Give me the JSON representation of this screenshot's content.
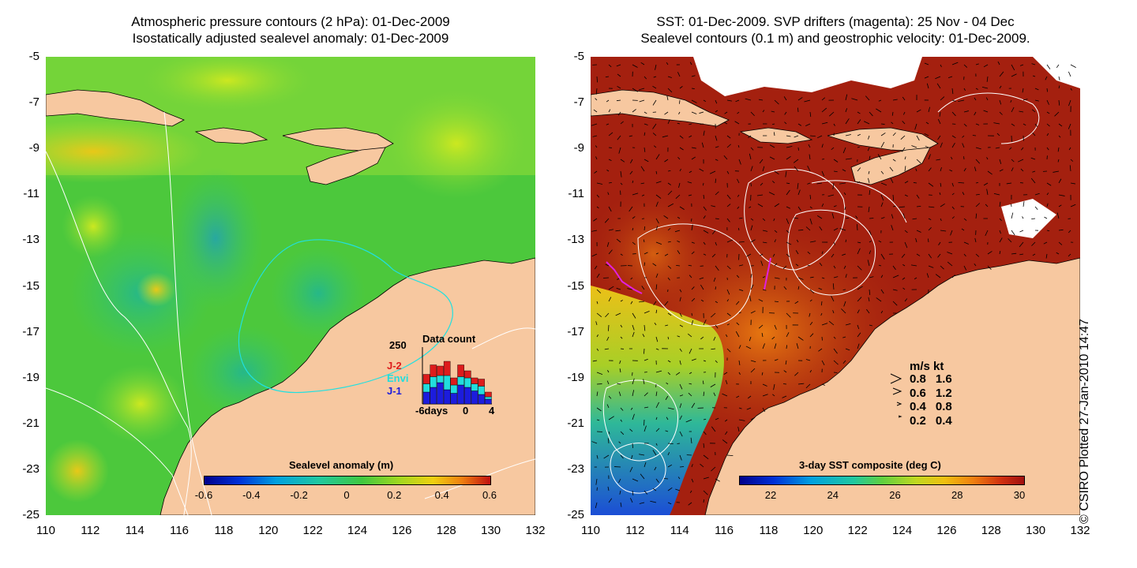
{
  "left_panel": {
    "title_line1": "Atmospheric pressure contours (2 hPa): 01-Dec-2009",
    "title_line2": "Isostatically adjusted sealevel anomaly: 01-Dec-2009",
    "colorbar_title": "Sealevel anomaly (m)",
    "colorbar_ticks": [
      "-0.6",
      "-0.4",
      "-0.2",
      "0",
      "0.2",
      "0.4",
      "0.6"
    ],
    "inset": {
      "title": "Data count",
      "ymax_label": "250",
      "series_labels": [
        "J-2",
        "Envi",
        "J-1"
      ],
      "series_colors": [
        "#dd1c1c",
        "#22dddd",
        "#1c1cdd"
      ],
      "x_labels": [
        "-6days",
        "0",
        "4"
      ],
      "x_values": [
        -6,
        0,
        4
      ],
      "ymax": 250,
      "stacks": [
        [
          40,
          35,
          50
        ],
        [
          50,
          45,
          70
        ],
        [
          40,
          30,
          90
        ],
        [
          60,
          60,
          60
        ],
        [
          30,
          35,
          45
        ],
        [
          50,
          35,
          80
        ],
        [
          30,
          40,
          70
        ],
        [
          25,
          30,
          55
        ],
        [
          30,
          35,
          40
        ],
        [
          20,
          10,
          20
        ]
      ]
    }
  },
  "right_panel": {
    "title_line1": "SST: 01-Dec-2009. SVP drifters (magenta): 25 Nov - 04 Dec",
    "title_line2": "Sealevel contours (0.1 m) and geostrophic velocity: 01-Dec-2009.",
    "colorbar_title": "3-day SST composite (deg C)",
    "colorbar_ticks": [
      "22",
      "24",
      "26",
      "28",
      "30"
    ],
    "velocity_legend": {
      "header": "m/s  kt",
      "rows": [
        {
          "ms": "0.8",
          "kt": "1.6"
        },
        {
          "ms": "0.6",
          "kt": "1.2"
        },
        {
          "ms": "0.4",
          "kt": "0.8"
        },
        {
          "ms": "0.2",
          "kt": "0.4"
        }
      ]
    }
  },
  "axes": {
    "x_ticks": [
      "110",
      "112",
      "114",
      "116",
      "118",
      "120",
      "122",
      "124",
      "126",
      "128",
      "130",
      "132"
    ],
    "y_ticks": [
      "-5",
      "-7",
      "-9",
      "-11",
      "-13",
      "-15",
      "-17",
      "-19",
      "-21",
      "-23",
      "-25"
    ],
    "lon_range": [
      110,
      132
    ],
    "lat_range": [
      -25,
      -5
    ]
  },
  "credit": "© CSIRO Plotted 27-Jan-2010 14:47",
  "colors": {
    "land": "#f7c8a0",
    "sla_background": "#4ccf3c",
    "sst_background": "#a4200f",
    "magenta": "#e020e0",
    "cyan_contour": "#20e0e0"
  }
}
